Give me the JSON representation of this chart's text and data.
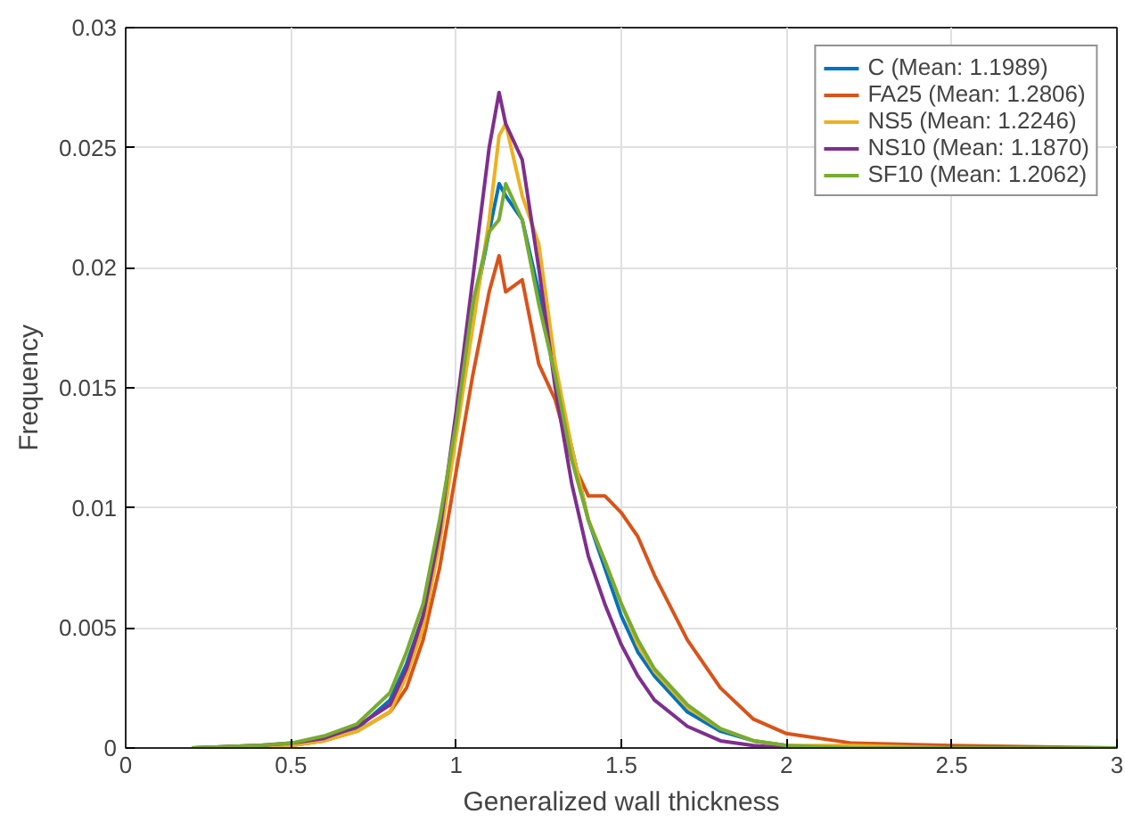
{
  "chart_data": {
    "type": "line",
    "xlabel": "Generalized wall thickness",
    "ylabel": "Frequency",
    "x": [
      0.2,
      0.4,
      0.5,
      0.6,
      0.7,
      0.8,
      0.85,
      0.9,
      0.95,
      1.0,
      1.05,
      1.1,
      1.13,
      1.15,
      1.2,
      1.25,
      1.3,
      1.35,
      1.4,
      1.45,
      1.5,
      1.55,
      1.6,
      1.7,
      1.8,
      1.9,
      2.0,
      2.2,
      2.5,
      3.0
    ],
    "series": [
      {
        "name": "C (Mean: 1.1989)",
        "color": "#0072bd",
        "x": [
          0.6,
          0.7,
          0.8,
          0.85,
          0.9,
          0.95,
          1.0,
          1.05,
          1.1,
          1.13,
          1.15,
          1.2,
          1.25,
          1.3,
          1.35,
          1.4,
          1.45,
          1.5,
          1.55,
          1.6,
          1.7,
          1.8,
          1.9,
          2.0
        ],
        "values": [
          0.0004,
          0.0008,
          0.002,
          0.0035,
          0.0055,
          0.009,
          0.0135,
          0.018,
          0.0215,
          0.0235,
          0.023,
          0.022,
          0.019,
          0.0155,
          0.0125,
          0.0095,
          0.0075,
          0.0055,
          0.004,
          0.003,
          0.0015,
          0.0007,
          0.0003,
          0.0001
        ]
      },
      {
        "name": "FA25 (Mean: 1.2806)",
        "color": "#d95319",
        "values": [
          0,
          0.0001,
          0.0001,
          0.0003,
          0.0007,
          0.0015,
          0.0025,
          0.0045,
          0.0075,
          0.0115,
          0.0155,
          0.019,
          0.0205,
          0.019,
          0.0195,
          0.016,
          0.0145,
          0.012,
          0.0105,
          0.0105,
          0.0098,
          0.0088,
          0.0072,
          0.0045,
          0.0025,
          0.0012,
          0.0006,
          0.0002,
          0.0001,
          0
        ]
      },
      {
        "name": "NS5 (Mean: 1.2246)",
        "color": "#edb120",
        "values": [
          0,
          0.0001,
          0.0001,
          0.0003,
          0.0007,
          0.0015,
          0.003,
          0.005,
          0.0085,
          0.013,
          0.0175,
          0.022,
          0.0255,
          0.026,
          0.023,
          0.021,
          0.016,
          0.0125,
          0.0095,
          0.0078,
          0.006,
          0.0043,
          0.0032,
          0.0017,
          0.0008,
          0.0003,
          0.0001,
          0.0001,
          0,
          0
        ]
      },
      {
        "name": "NS10 (Mean: 1.1870)",
        "color": "#7e2f8e",
        "x": [
          0.2,
          0.4,
          0.5,
          0.6,
          0.7,
          0.8,
          0.85,
          0.9,
          0.95,
          1.0,
          1.05,
          1.1,
          1.13,
          1.15,
          1.2,
          1.25,
          1.3,
          1.35,
          1.4,
          1.45,
          1.5,
          1.55,
          1.6,
          1.7,
          1.8,
          1.9,
          2.0,
          2.2
        ],
        "values": [
          0,
          0.0001,
          0.0002,
          0.0004,
          0.0009,
          0.0018,
          0.0033,
          0.0055,
          0.009,
          0.014,
          0.0195,
          0.025,
          0.0273,
          0.026,
          0.0245,
          0.02,
          0.015,
          0.011,
          0.008,
          0.006,
          0.0043,
          0.003,
          0.002,
          0.0009,
          0.0003,
          0.0001,
          0,
          0
        ]
      },
      {
        "name": "SF10 (Mean: 1.2062)",
        "color": "#77ac30",
        "values": [
          0,
          0.0001,
          0.0002,
          0.0005,
          0.001,
          0.0023,
          0.004,
          0.006,
          0.0095,
          0.0135,
          0.0185,
          0.0215,
          0.022,
          0.0235,
          0.022,
          0.0185,
          0.0155,
          0.012,
          0.0095,
          0.0078,
          0.006,
          0.0045,
          0.0033,
          0.0018,
          0.0008,
          0.0003,
          0.0001,
          0,
          0,
          0
        ]
      }
    ],
    "xlim": [
      0,
      3
    ],
    "ylim": [
      0,
      0.03
    ],
    "xticks": [
      0,
      0.5,
      1,
      1.5,
      2,
      2.5,
      3
    ],
    "yticks": [
      0,
      0.005,
      0.01,
      0.015,
      0.02,
      0.025,
      0.03
    ],
    "grid": true,
    "legend": "top right",
    "line_style": "solid",
    "marker": "none"
  }
}
